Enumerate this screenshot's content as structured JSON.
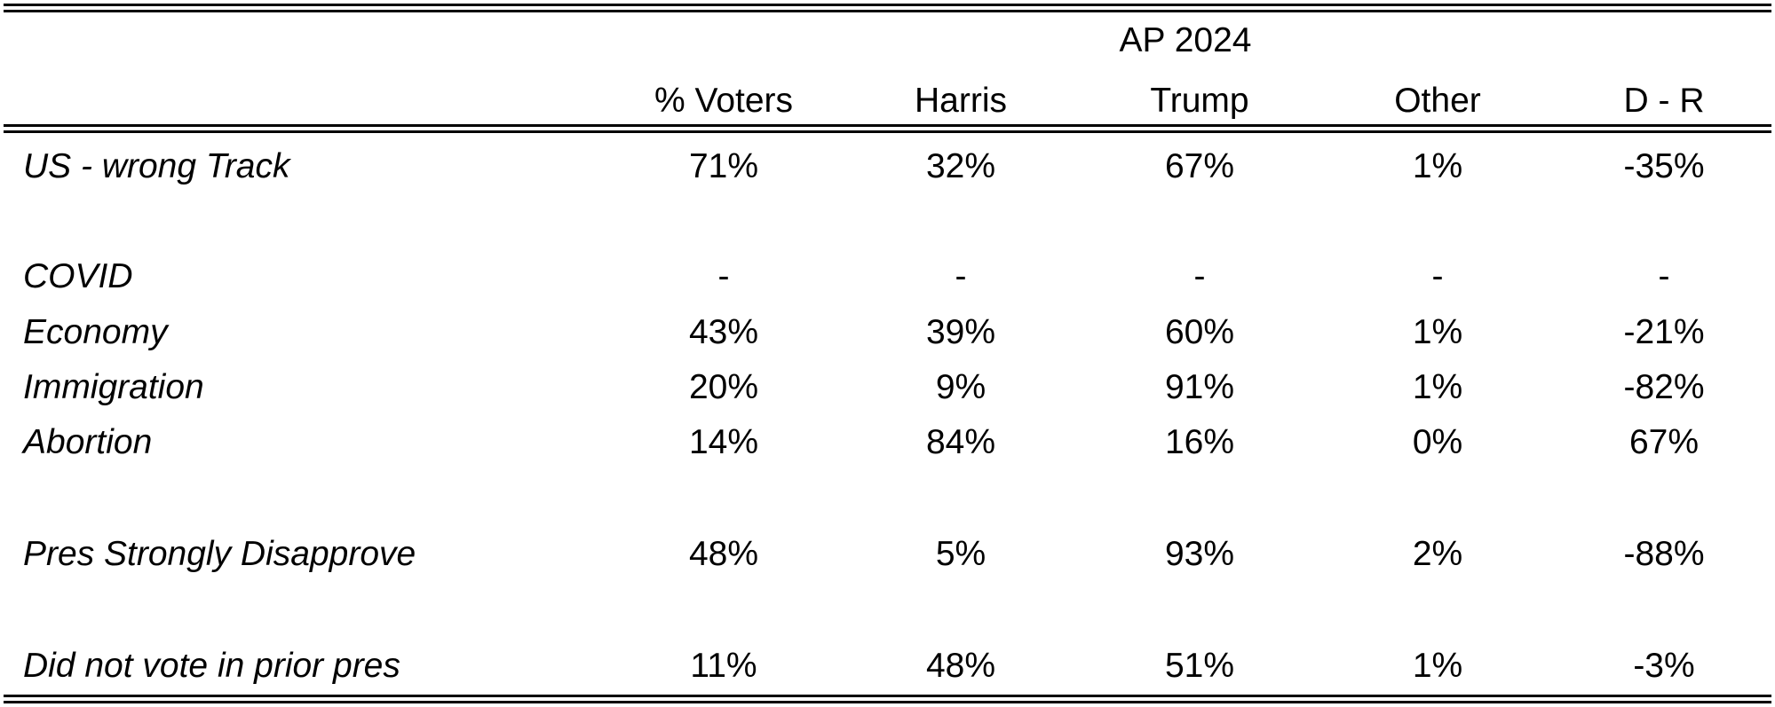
{
  "table": {
    "group_header": "AP 2024",
    "columns": [
      "% Voters",
      "Harris",
      "Trump",
      "Other",
      "D - R"
    ],
    "rows": [
      {
        "label": "US - wrong Track",
        "values": [
          "71%",
          "32%",
          "67%",
          "1%",
          "-35%"
        ]
      },
      {
        "label": "COVID",
        "values": [
          "-",
          "-",
          "-",
          "-",
          "-"
        ]
      },
      {
        "label": "Economy",
        "values": [
          "43%",
          "39%",
          "60%",
          "1%",
          "-21%"
        ]
      },
      {
        "label": "Immigration",
        "values": [
          "20%",
          "9%",
          "91%",
          "1%",
          "-82%"
        ]
      },
      {
        "label": "Abortion",
        "values": [
          "14%",
          "84%",
          "16%",
          "0%",
          "67%"
        ]
      },
      {
        "label": "Pres Strongly Disapprove",
        "values": [
          "48%",
          "5%",
          "93%",
          "2%",
          "-88%"
        ]
      },
      {
        "label": "Did not vote in  prior pres",
        "values": [
          "11%",
          "48%",
          "51%",
          "1%",
          "-3%"
        ]
      }
    ]
  }
}
